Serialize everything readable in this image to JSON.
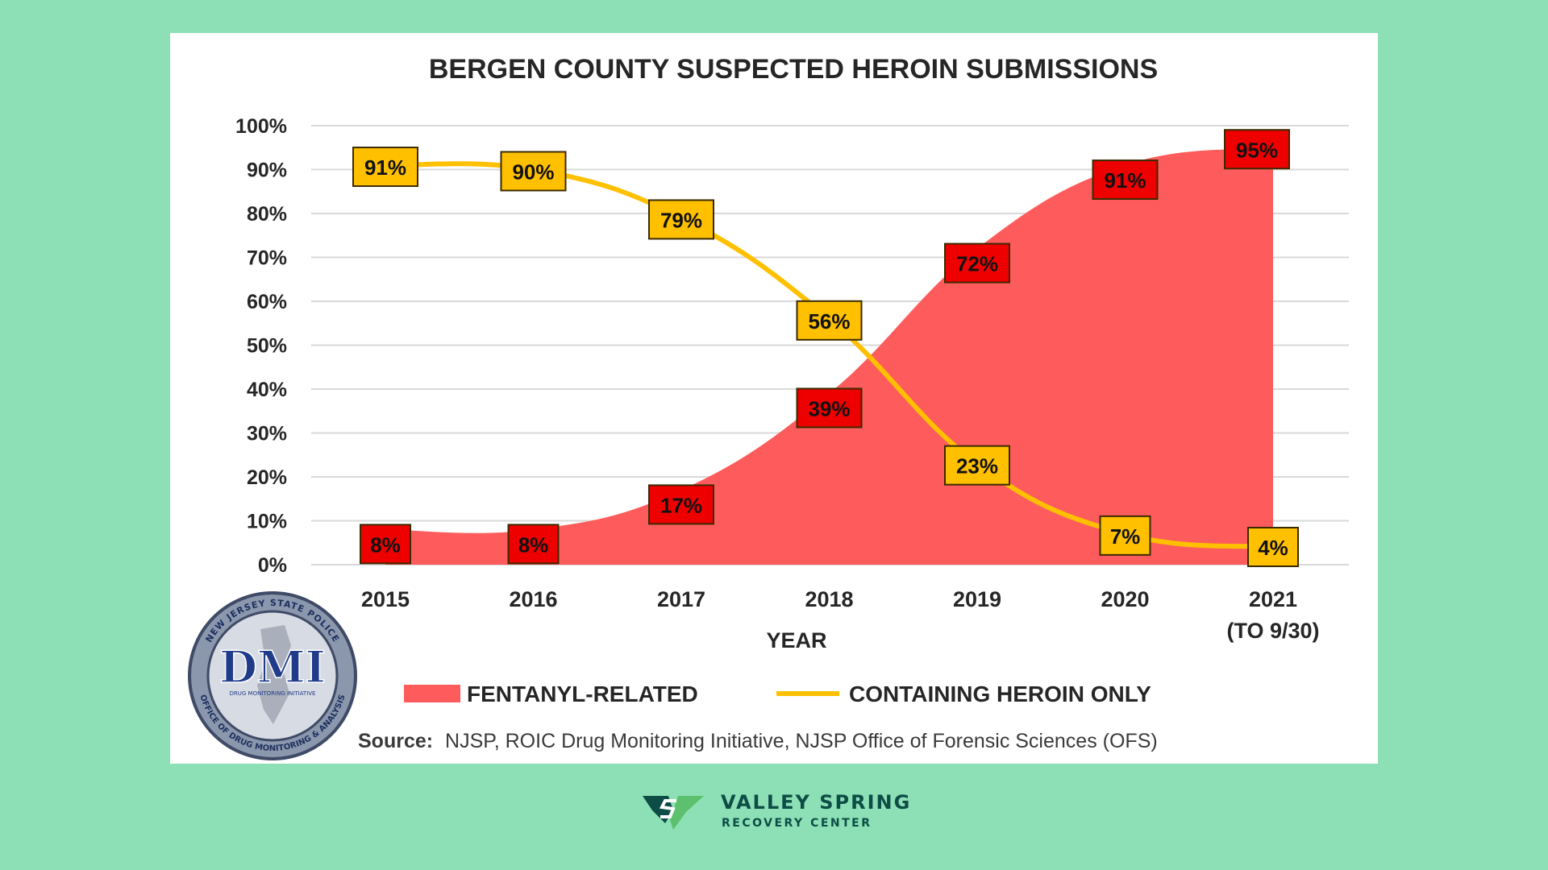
{
  "chart_data": {
    "type": "area",
    "title": "BERGEN COUNTY SUSPECTED HEROIN SUBMISSIONS",
    "xlabel": "YEAR",
    "ylabel": "",
    "categories": [
      "2015",
      "2016",
      "2017",
      "2018",
      "2019",
      "2020",
      "2021"
    ],
    "category_sublabels": [
      "",
      "",
      "",
      "",
      "",
      "",
      "(TO 9/30)"
    ],
    "yticks": [
      "0%",
      "10%",
      "20%",
      "30%",
      "40%",
      "50%",
      "60%",
      "70%",
      "80%",
      "90%",
      "100%"
    ],
    "ylim": [
      0,
      100
    ],
    "grid": true,
    "legend_position": "bottom",
    "series": [
      {
        "name": "FENTANYL-RELATED",
        "kind": "area",
        "color": "#fe5c5c",
        "label_box_color": "#ee0000",
        "values": [
          8,
          8,
          17,
          39,
          72,
          91,
          95
        ],
        "labels": [
          "8%",
          "8%",
          "17%",
          "39%",
          "72%",
          "91%",
          "95%"
        ]
      },
      {
        "name": "CONTAINING HEROIN ONLY",
        "kind": "line",
        "color": "#ffc000",
        "label_box_color": "#ffc000",
        "values": [
          91,
          90,
          79,
          56,
          23,
          7,
          4
        ],
        "labels": [
          "91%",
          "90%",
          "79%",
          "56%",
          "23%",
          "7%",
          "4%"
        ]
      }
    ],
    "source_label": "Source:",
    "source_text": "NJSP, ROIC Drug Monitoring Initiative, NJSP Office of Forensic Sciences (OFS)"
  },
  "seal": {
    "center_text": "DMI",
    "top_arc_text": "NEW JERSEY STATE POLICE",
    "bottom_arc_text": "OFFICE OF DRUG MONITORING & ANALYSIS",
    "inner_text": "DRUG MONITORING INITIATIVE"
  },
  "brand": {
    "name": "VALLEY SPRING",
    "subtitle": "RECOVERY CENTER",
    "icon": "valley-spring-logo-icon",
    "colors": {
      "dark": "#0d4d46",
      "green": "#5cc06e"
    }
  }
}
